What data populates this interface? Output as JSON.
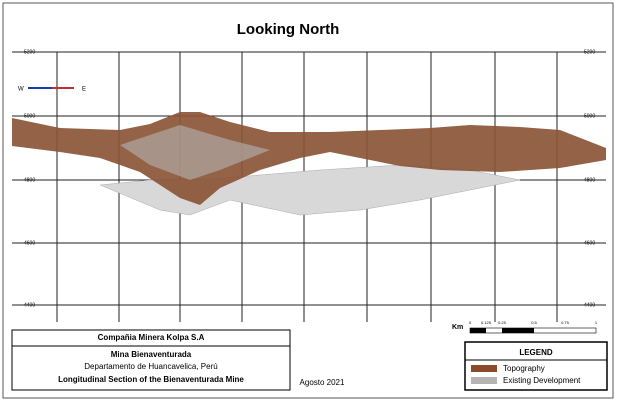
{
  "header": {
    "title": "Looking North"
  },
  "compass": {
    "west": "W",
    "east": "E"
  },
  "elevations": [
    "5200",
    "5000",
    "4800",
    "4600",
    "4400"
  ],
  "scale": {
    "unit": "Km",
    "ticks": [
      "0",
      "0.125",
      "0.25",
      "0.5",
      "0.75",
      "1"
    ]
  },
  "title_block": {
    "company": "Compañia Minera Kolpa S.A",
    "mine": "Mina Bienaventurada",
    "region": "Departamento de Huancavelica, Perú",
    "section": "Longitudinal Section of the Bienaventurada Mine"
  },
  "date": "Agosto 2021",
  "legend": {
    "title": "LEGEND",
    "items": [
      "Topography",
      "Existing Development"
    ]
  }
}
